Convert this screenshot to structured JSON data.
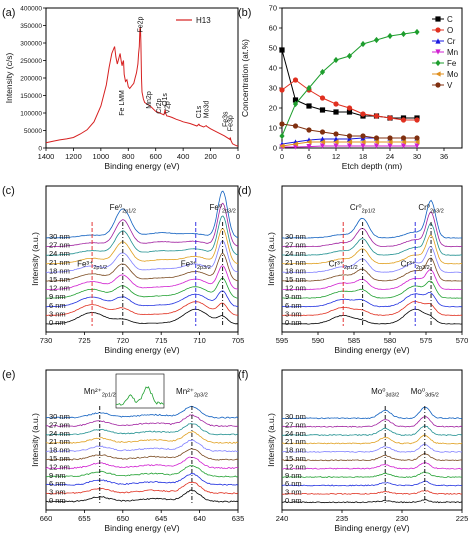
{
  "chart_data": [
    {
      "id": "a",
      "type": "line",
      "panel_label": "(a)",
      "xlabel": "Binding energy (eV)",
      "ylabel": "Intensity (c/s)",
      "xlim": [
        1400,
        0
      ],
      "ylim": [
        0,
        400000
      ],
      "xticks": [
        1400,
        1200,
        1000,
        800,
        600,
        400,
        200,
        0
      ],
      "yticks": [
        0,
        50000,
        100000,
        150000,
        200000,
        250000,
        300000,
        350000,
        400000
      ],
      "legend": "H13",
      "legend_position": "top-right",
      "series": [
        {
          "name": "H13",
          "color": "#d62020",
          "x": [
            1400,
            1350,
            1300,
            1250,
            1200,
            1150,
            1100,
            1050,
            1000,
            980,
            960,
            940,
            920,
            900,
            890,
            880,
            870,
            860,
            850,
            845,
            840,
            835,
            830,
            820,
            810,
            800,
            790,
            780,
            770,
            760,
            750,
            740,
            730,
            725,
            720,
            715,
            712,
            710,
            708,
            706,
            704,
            700,
            690,
            680,
            660,
            640,
            600,
            570,
            560,
            540,
            531,
            528,
            520,
            500,
            480,
            450,
            420,
            400,
            350,
            300,
            285,
            280,
            250,
            232,
            228,
            200,
            150,
            100,
            60,
            56,
            52,
            40,
            20,
            0
          ],
          "y": [
            15000,
            19000,
            23000,
            26000,
            30000,
            40000,
            52000,
            75000,
            120000,
            150000,
            180000,
            230000,
            270000,
            290000,
            260000,
            240000,
            255000,
            270000,
            245000,
            235000,
            245000,
            250000,
            210000,
            190000,
            195000,
            175000,
            170000,
            175000,
            180000,
            185000,
            200000,
            215000,
            240000,
            270000,
            290000,
            340000,
            345000,
            330000,
            300000,
            250000,
            200000,
            160000,
            140000,
            130000,
            125000,
            120000,
            105000,
            100000,
            98000,
            95000,
            110000,
            100000,
            92000,
            90000,
            87000,
            82000,
            78000,
            75000,
            70000,
            63000,
            68000,
            65000,
            60000,
            64000,
            62000,
            55000,
            45000,
            35000,
            25000,
            30000,
            22000,
            12000,
            8000,
            5000
          ]
        }
      ],
      "annotations": [
        "Fe LMM",
        "Fe2p",
        "Mn2p",
        "Cr2p",
        "V2p",
        "O1s",
        "C1s",
        "Mo3d",
        "Fe3s",
        "Fe3p"
      ]
    },
    {
      "id": "b",
      "type": "line",
      "panel_label": "(b)",
      "xlabel": "Etch depth (nm)",
      "ylabel": "Concentration (at.%)",
      "xlim": [
        0,
        40
      ],
      "ylim": [
        0,
        70
      ],
      "xticks": [
        0,
        6,
        12,
        18,
        24,
        30,
        36
      ],
      "yticks": [
        0,
        10,
        20,
        30,
        40,
        50,
        60,
        70
      ],
      "legend_position": "top-right",
      "x": [
        0,
        3,
        6,
        9,
        12,
        15,
        18,
        21,
        24,
        27,
        30
      ],
      "series": [
        {
          "name": "C",
          "color": "#000000",
          "marker": "square",
          "values": [
            49,
            24,
            21,
            19,
            18,
            18,
            16,
            16,
            15,
            15,
            15
          ]
        },
        {
          "name": "O",
          "color": "#e03020",
          "marker": "circle",
          "values": [
            29,
            34,
            29,
            25,
            22,
            20,
            17,
            16,
            15,
            14,
            14
          ]
        },
        {
          "name": "Cr",
          "color": "#1a1ae0",
          "marker": "triangle",
          "values": [
            2,
            3,
            4,
            4.5,
            4.5,
            4.5,
            5,
            5,
            5,
            5,
            5
          ]
        },
        {
          "name": "Mn",
          "color": "#d020d0",
          "marker": "triangle-down",
          "values": [
            0.5,
            0.5,
            0.7,
            1,
            1,
            1,
            1,
            1,
            1,
            1,
            1
          ]
        },
        {
          "name": "Fe",
          "color": "#1e9e2e",
          "marker": "diamond",
          "values": [
            6,
            22,
            30,
            38,
            44,
            46,
            52,
            54,
            56,
            57,
            58
          ]
        },
        {
          "name": "Mo",
          "color": "#e09020",
          "marker": "triangle-left",
          "values": [
            1,
            2,
            3,
            3,
            3,
            3,
            3,
            3,
            3,
            3,
            3
          ]
        },
        {
          "name": "V",
          "color": "#803010",
          "marker": "circle",
          "values": [
            12,
            11,
            9,
            8,
            7,
            6,
            6,
            5,
            5,
            5,
            5
          ]
        }
      ]
    },
    {
      "id": "c",
      "type": "line",
      "panel_label": "(c)",
      "xlabel": "Binding energy (eV)",
      "ylabel": "Intensity (a.u.)",
      "xlim": [
        730,
        705
      ],
      "xticks": [
        730,
        725,
        720,
        715,
        710,
        705
      ],
      "depth_labels": [
        "0 nm",
        "3 nm",
        "6 nm",
        "9 nm",
        "12 nm",
        "15 nm",
        "18 nm",
        "21 nm",
        "24 nm",
        "27 nm",
        "30 nm"
      ],
      "peaks": [
        {
          "label": "Fe⁰",
          "sub": "2p1/2",
          "x": 720,
          "style": "dash-dot",
          "color": "#000000"
        },
        {
          "label": "Fe⁰",
          "sub": "2p3/2",
          "x": 707,
          "style": "dash-dot",
          "color": "#000000"
        },
        {
          "label": "Fe³⁺",
          "sub": "2p1/2",
          "x": 724,
          "style": "dash",
          "color": "#e02020"
        },
        {
          "label": "Fe³⁺",
          "sub": "2p3/2",
          "x": 710.5,
          "style": "dash",
          "color": "#2020e0"
        }
      ]
    },
    {
      "id": "d",
      "type": "line",
      "panel_label": "(d)",
      "xlabel": "Binding energy (eV)",
      "ylabel": "Intensity (a.u.)",
      "xlim": [
        595,
        570
      ],
      "xticks": [
        595,
        590,
        585,
        580,
        575,
        570
      ],
      "depth_labels": [
        "0 nm",
        "3 nm",
        "6 nm",
        "9 nm",
        "12 nm",
        "15 nm",
        "18 nm",
        "21 nm",
        "24 nm",
        "27 nm",
        "30 nm"
      ],
      "peaks": [
        {
          "label": "Cr⁰",
          "sub": "2p1/2",
          "x": 583.8,
          "style": "dash-dot",
          "color": "#000000"
        },
        {
          "label": "Cr⁰",
          "sub": "2p3/2",
          "x": 574.3,
          "style": "dash-dot",
          "color": "#000000"
        },
        {
          "label": "Cr³⁺",
          "sub": "2p1/2",
          "x": 586.5,
          "style": "dash",
          "color": "#e02020"
        },
        {
          "label": "Cr³⁺",
          "sub": "2p3/2",
          "x": 576.5,
          "style": "dash",
          "color": "#2020e0"
        }
      ]
    },
    {
      "id": "e",
      "type": "line",
      "panel_label": "(e)",
      "xlabel": "Binding energy (eV)",
      "ylabel": "Intensity (a.u.)",
      "xlim": [
        660,
        635
      ],
      "xticks": [
        660,
        655,
        650,
        645,
        640,
        635
      ],
      "depth_labels": [
        "0 nm",
        "3 nm",
        "6 nm",
        "9 nm",
        "12 nm",
        "15 nm",
        "18 nm",
        "21 nm",
        "24 nm",
        "27 nm",
        "30 nm"
      ],
      "peaks": [
        {
          "label": "Mn²⁺",
          "sub": "2p1/2",
          "x": 653,
          "style": "dash-dot",
          "color": "#000000"
        },
        {
          "label": "Mn²⁺",
          "sub": "2p3/2",
          "x": 641,
          "style": "dash-dot",
          "color": "#000000"
        }
      ]
    },
    {
      "id": "f",
      "type": "line",
      "panel_label": "(f)",
      "xlabel": "Binding energy (eV)",
      "ylabel": "Intensity (a.u.)",
      "xlim": [
        240,
        225
      ],
      "xticks": [
        240,
        235,
        230,
        225
      ],
      "depth_labels": [
        "0 nm",
        "3 nm",
        "6 nm",
        "9 nm",
        "12 nm",
        "15 nm",
        "18 nm",
        "21 nm",
        "24 nm",
        "27 nm",
        "30 nm"
      ],
      "peaks": [
        {
          "label": "Mo⁰",
          "sub": "3d3/2",
          "x": 231.4,
          "style": "dash-dot",
          "color": "#000000"
        },
        {
          "label": "Mo⁰",
          "sub": "3d5/2",
          "x": 228.1,
          "style": "dash-dot",
          "color": "#000000"
        }
      ]
    }
  ],
  "depth_colors": [
    "#000000",
    "#e03020",
    "#2030e0",
    "#20a030",
    "#d020d0",
    "#7a4a20",
    "#8080ff",
    "#e0a020",
    "#209090",
    "#a020a0",
    "#1060c0"
  ]
}
